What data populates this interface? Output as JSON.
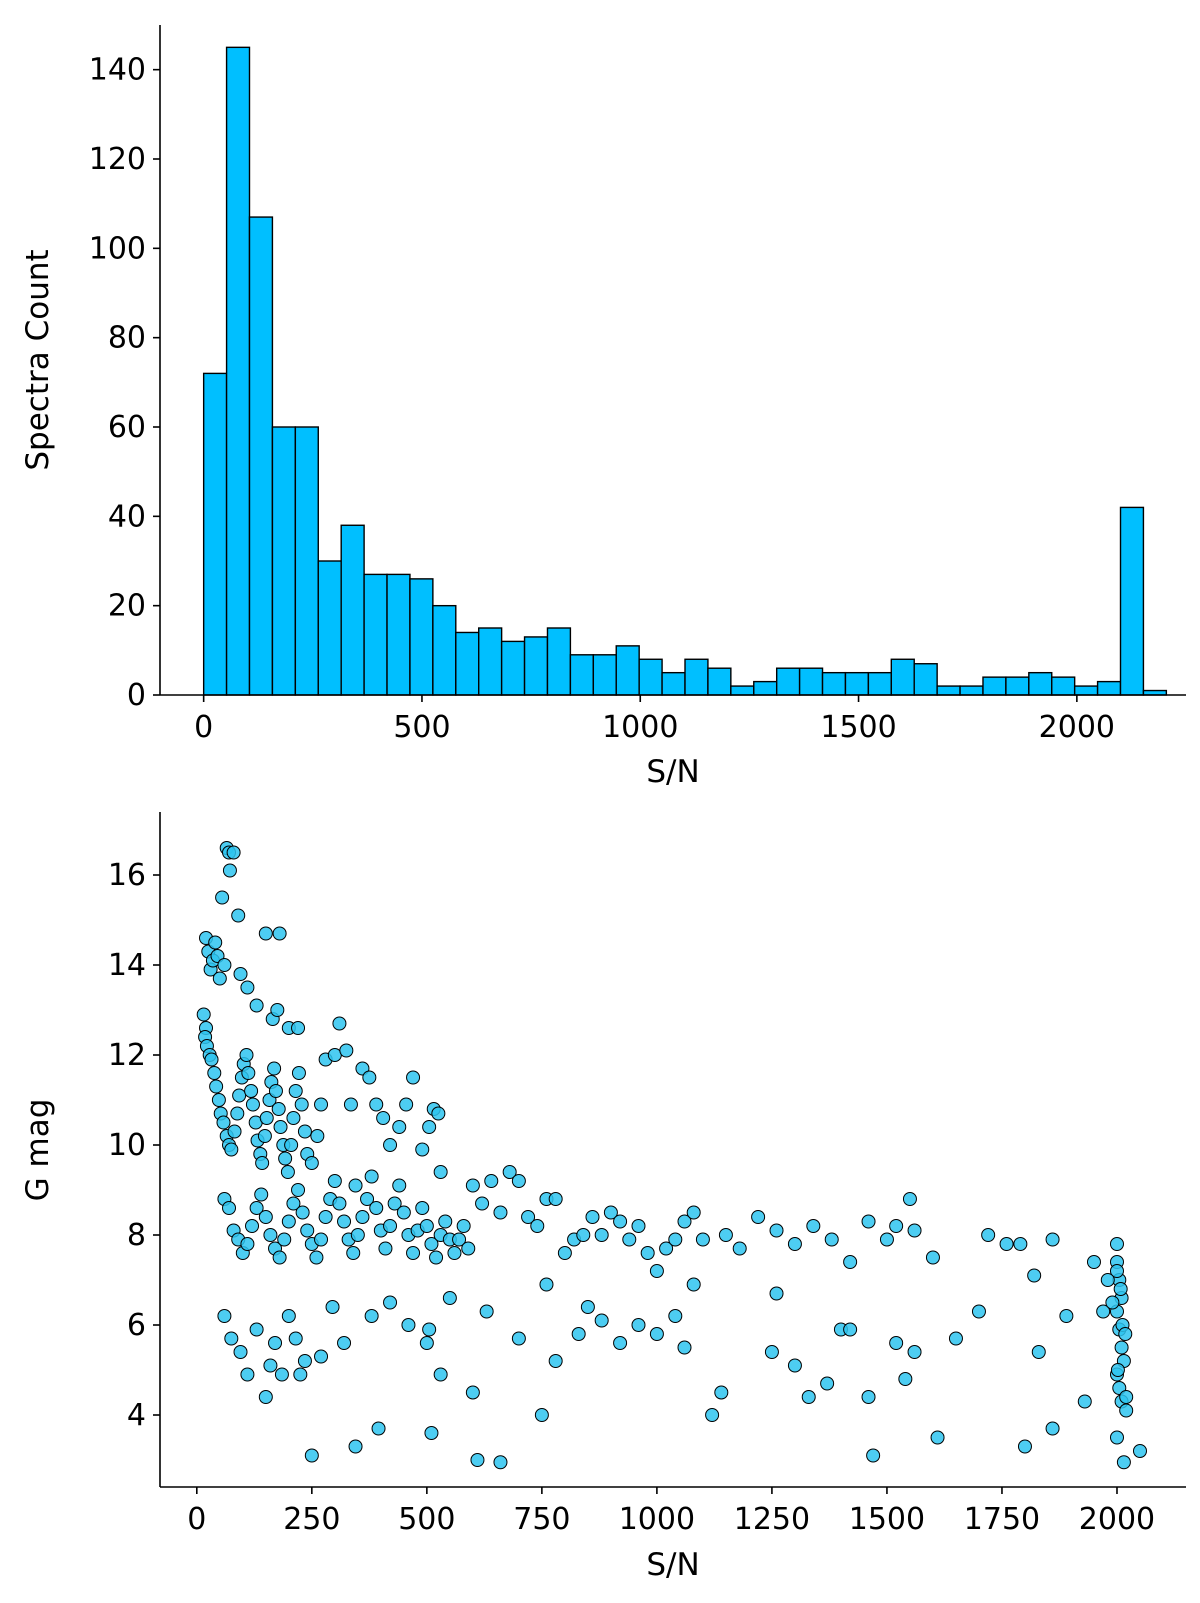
{
  "chart_data": [
    {
      "type": "bar",
      "subtype": "histogram",
      "xlabel": "S/N",
      "ylabel": "Spectra Count",
      "xlim": [
        -100,
        2250
      ],
      "ylim": [
        0,
        150
      ],
      "xticks": [
        0,
        500,
        1000,
        1500,
        2000
      ],
      "yticks": [
        0,
        20,
        40,
        60,
        80,
        100,
        120,
        140
      ],
      "grid": false,
      "bar_color": "#00bfff",
      "edge_color": "#000000",
      "bin_width": 52.5,
      "bins_start": 0,
      "values": [
        72,
        145,
        107,
        60,
        60,
        30,
        38,
        27,
        27,
        26,
        20,
        14,
        15,
        12,
        13,
        15,
        9,
        9,
        11,
        8,
        5,
        8,
        6,
        2,
        3,
        6,
        6,
        5,
        5,
        5,
        8,
        7,
        2,
        2,
        4,
        4,
        5,
        4,
        2,
        3,
        42,
        1
      ]
    },
    {
      "type": "scatter",
      "xlabel": "S/N",
      "ylabel": "G mag",
      "xlim": [
        -80,
        2150
      ],
      "ylim": [
        2.4,
        17.4
      ],
      "xticks": [
        0,
        250,
        500,
        750,
        1000,
        1250,
        1500,
        1750,
        2000
      ],
      "yticks": [
        4,
        6,
        8,
        10,
        12,
        14,
        16
      ],
      "grid": false,
      "marker_color": "#2ec4f0",
      "edge_color": "#000000",
      "points": [
        [
          20,
          14.6
        ],
        [
          25,
          14.3
        ],
        [
          30,
          13.9
        ],
        [
          35,
          14.1
        ],
        [
          40,
          14.5
        ],
        [
          45,
          14.2
        ],
        [
          50,
          13.7
        ],
        [
          55,
          15.5
        ],
        [
          60,
          14.0
        ],
        [
          65,
          16.6
        ],
        [
          70,
          16.5
        ],
        [
          72,
          16.1
        ],
        [
          80,
          16.5
        ],
        [
          90,
          15.1
        ],
        [
          95,
          13.8
        ],
        [
          110,
          13.5
        ],
        [
          130,
          13.1
        ],
        [
          150,
          14.7
        ],
        [
          165,
          12.8
        ],
        [
          180,
          14.7
        ],
        [
          175,
          13.0
        ],
        [
          200,
          12.6
        ],
        [
          220,
          12.6
        ],
        [
          20,
          12.6
        ],
        [
          15,
          12.9
        ],
        [
          18,
          12.4
        ],
        [
          22,
          12.2
        ],
        [
          28,
          12.0
        ],
        [
          32,
          11.9
        ],
        [
          38,
          11.6
        ],
        [
          42,
          11.3
        ],
        [
          48,
          11.0
        ],
        [
          52,
          10.7
        ],
        [
          58,
          10.5
        ],
        [
          65,
          10.2
        ],
        [
          70,
          10.0
        ],
        [
          75,
          9.9
        ],
        [
          82,
          10.3
        ],
        [
          88,
          10.7
        ],
        [
          92,
          11.1
        ],
        [
          98,
          11.5
        ],
        [
          102,
          11.8
        ],
        [
          108,
          12.0
        ],
        [
          112,
          11.6
        ],
        [
          118,
          11.2
        ],
        [
          122,
          10.9
        ],
        [
          128,
          10.5
        ],
        [
          132,
          10.1
        ],
        [
          138,
          9.8
        ],
        [
          142,
          9.6
        ],
        [
          148,
          10.2
        ],
        [
          152,
          10.6
        ],
        [
          158,
          11.0
        ],
        [
          162,
          11.4
        ],
        [
          168,
          11.7
        ],
        [
          172,
          11.2
        ],
        [
          178,
          10.8
        ],
        [
          182,
          10.4
        ],
        [
          188,
          10.0
        ],
        [
          192,
          9.7
        ],
        [
          198,
          9.4
        ],
        [
          205,
          10.0
        ],
        [
          210,
          10.6
        ],
        [
          215,
          11.2
        ],
        [
          222,
          11.6
        ],
        [
          228,
          10.9
        ],
        [
          235,
          10.3
        ],
        [
          240,
          9.8
        ],
        [
          250,
          9.6
        ],
        [
          262,
          10.2
        ],
        [
          270,
          10.9
        ],
        [
          280,
          11.9
        ],
        [
          300,
          12.0
        ],
        [
          310,
          12.7
        ],
        [
          325,
          12.1
        ],
        [
          335,
          10.9
        ],
        [
          345,
          9.1
        ],
        [
          360,
          11.7
        ],
        [
          375,
          11.5
        ],
        [
          390,
          10.9
        ],
        [
          405,
          10.6
        ],
        [
          420,
          10.0
        ],
        [
          440,
          10.4
        ],
        [
          455,
          10.9
        ],
        [
          470,
          11.5
        ],
        [
          490,
          9.9
        ],
        [
          505,
          10.4
        ],
        [
          515,
          10.8
        ],
        [
          525,
          10.7
        ],
        [
          530,
          9.4
        ],
        [
          60,
          8.8
        ],
        [
          70,
          8.6
        ],
        [
          80,
          8.1
        ],
        [
          90,
          7.9
        ],
        [
          100,
          7.6
        ],
        [
          110,
          7.8
        ],
        [
          120,
          8.2
        ],
        [
          130,
          8.6
        ],
        [
          140,
          8.9
        ],
        [
          150,
          8.4
        ],
        [
          160,
          8.0
        ],
        [
          170,
          7.7
        ],
        [
          180,
          7.5
        ],
        [
          190,
          7.9
        ],
        [
          200,
          8.3
        ],
        [
          210,
          8.7
        ],
        [
          220,
          9.0
        ],
        [
          230,
          8.5
        ],
        [
          240,
          8.1
        ],
        [
          250,
          7.8
        ],
        [
          260,
          7.5
        ],
        [
          270,
          7.9
        ],
        [
          280,
          8.4
        ],
        [
          290,
          8.8
        ],
        [
          300,
          9.2
        ],
        [
          310,
          8.7
        ],
        [
          320,
          8.3
        ],
        [
          330,
          7.9
        ],
        [
          340,
          7.6
        ],
        [
          350,
          8.0
        ],
        [
          360,
          8.4
        ],
        [
          370,
          8.8
        ],
        [
          380,
          9.3
        ],
        [
          390,
          8.6
        ],
        [
          400,
          8.1
        ],
        [
          410,
          7.7
        ],
        [
          420,
          8.2
        ],
        [
          430,
          8.7
        ],
        [
          440,
          9.1
        ],
        [
          450,
          8.5
        ],
        [
          460,
          8.0
        ],
        [
          470,
          7.6
        ],
        [
          480,
          8.1
        ],
        [
          490,
          8.6
        ],
        [
          500,
          8.2
        ],
        [
          510,
          7.8
        ],
        [
          520,
          7.5
        ],
        [
          530,
          8.0
        ],
        [
          540,
          8.3
        ],
        [
          550,
          7.9
        ],
        [
          560,
          7.6
        ],
        [
          570,
          7.9
        ],
        [
          580,
          8.2
        ],
        [
          590,
          7.7
        ],
        [
          600,
          9.1
        ],
        [
          620,
          8.7
        ],
        [
          640,
          9.2
        ],
        [
          660,
          8.5
        ],
        [
          680,
          9.4
        ],
        [
          700,
          9.2
        ],
        [
          720,
          8.4
        ],
        [
          740,
          8.2
        ],
        [
          760,
          8.8
        ],
        [
          780,
          8.8
        ],
        [
          800,
          7.6
        ],
        [
          820,
          7.9
        ],
        [
          840,
          8.0
        ],
        [
          860,
          8.4
        ],
        [
          880,
          8.0
        ],
        [
          900,
          8.5
        ],
        [
          920,
          8.3
        ],
        [
          940,
          7.9
        ],
        [
          960,
          8.2
        ],
        [
          980,
          7.6
        ],
        [
          1000,
          7.2
        ],
        [
          1020,
          7.7
        ],
        [
          1040,
          7.9
        ],
        [
          1060,
          8.3
        ],
        [
          1080,
          8.5
        ],
        [
          1100,
          7.9
        ],
        [
          1150,
          8.0
        ],
        [
          1180,
          7.7
        ],
        [
          1220,
          8.4
        ],
        [
          1260,
          8.1
        ],
        [
          1300,
          7.8
        ],
        [
          1340,
          8.2
        ],
        [
          1380,
          7.9
        ],
        [
          1420,
          7.4
        ],
        [
          1460,
          8.3
        ],
        [
          1500,
          7.9
        ],
        [
          1520,
          8.2
        ],
        [
          1550,
          8.8
        ],
        [
          1560,
          8.1
        ],
        [
          1600,
          7.5
        ],
        [
          1720,
          8.0
        ],
        [
          1760,
          7.8
        ],
        [
          1790,
          7.8
        ],
        [
          1820,
          7.1
        ],
        [
          1860,
          7.9
        ],
        [
          1950,
          7.4
        ],
        [
          60,
          6.2
        ],
        [
          75,
          5.7
        ],
        [
          95,
          5.4
        ],
        [
          110,
          4.9
        ],
        [
          130,
          5.9
        ],
        [
          150,
          4.4
        ],
        [
          160,
          5.1
        ],
        [
          170,
          5.6
        ],
        [
          185,
          4.9
        ],
        [
          200,
          6.2
        ],
        [
          215,
          5.7
        ],
        [
          225,
          4.9
        ],
        [
          235,
          5.2
        ],
        [
          250,
          3.1
        ],
        [
          270,
          5.3
        ],
        [
          295,
          6.4
        ],
        [
          320,
          5.6
        ],
        [
          345,
          3.3
        ],
        [
          380,
          6.2
        ],
        [
          395,
          3.7
        ],
        [
          420,
          6.5
        ],
        [
          460,
          6.0
        ],
        [
          500,
          5.6
        ],
        [
          505,
          5.9
        ],
        [
          510,
          3.6
        ],
        [
          530,
          4.9
        ],
        [
          550,
          6.6
        ],
        [
          600,
          4.5
        ],
        [
          610,
          3.0
        ],
        [
          630,
          6.3
        ],
        [
          660,
          2.95
        ],
        [
          700,
          5.7
        ],
        [
          750,
          4.0
        ],
        [
          760,
          6.9
        ],
        [
          780,
          5.2
        ],
        [
          830,
          5.8
        ],
        [
          850,
          6.4
        ],
        [
          880,
          6.1
        ],
        [
          920,
          5.6
        ],
        [
          960,
          6.0
        ],
        [
          1000,
          5.8
        ],
        [
          1040,
          6.2
        ],
        [
          1060,
          5.5
        ],
        [
          1080,
          6.9
        ],
        [
          1120,
          4.0
        ],
        [
          1140,
          4.5
        ],
        [
          1250,
          5.4
        ],
        [
          1260,
          6.7
        ],
        [
          1300,
          5.1
        ],
        [
          1330,
          4.4
        ],
        [
          1370,
          4.7
        ],
        [
          1400,
          5.9
        ],
        [
          1420,
          5.9
        ],
        [
          1460,
          4.4
        ],
        [
          1470,
          3.1
        ],
        [
          1520,
          5.6
        ],
        [
          1540,
          4.8
        ],
        [
          1560,
          5.4
        ],
        [
          1610,
          3.5
        ],
        [
          1650,
          5.7
        ],
        [
          1700,
          6.3
        ],
        [
          1800,
          3.3
        ],
        [
          1830,
          5.4
        ],
        [
          1860,
          3.7
        ],
        [
          1890,
          6.2
        ],
        [
          1930,
          4.3
        ],
        [
          1970,
          6.3
        ],
        [
          2000,
          7.8
        ],
        [
          2000,
          7.4
        ],
        [
          2005,
          7.0
        ],
        [
          2010,
          6.6
        ],
        [
          2000,
          6.3
        ],
        [
          2005,
          5.9
        ],
        [
          2010,
          5.5
        ],
        [
          2015,
          5.2
        ],
        [
          2000,
          4.9
        ],
        [
          2005,
          4.6
        ],
        [
          2010,
          4.3
        ],
        [
          2020,
          4.1
        ],
        [
          2000,
          3.5
        ],
        [
          2015,
          2.95
        ],
        [
          2050,
          3.2
        ],
        [
          2000,
          7.2
        ],
        [
          2008,
          6.8
        ],
        [
          2012,
          6.0
        ],
        [
          1990,
          6.5
        ],
        [
          1980,
          7.0
        ],
        [
          2018,
          5.8
        ],
        [
          2002,
          5.0
        ],
        [
          2020,
          4.4
        ]
      ]
    }
  ]
}
